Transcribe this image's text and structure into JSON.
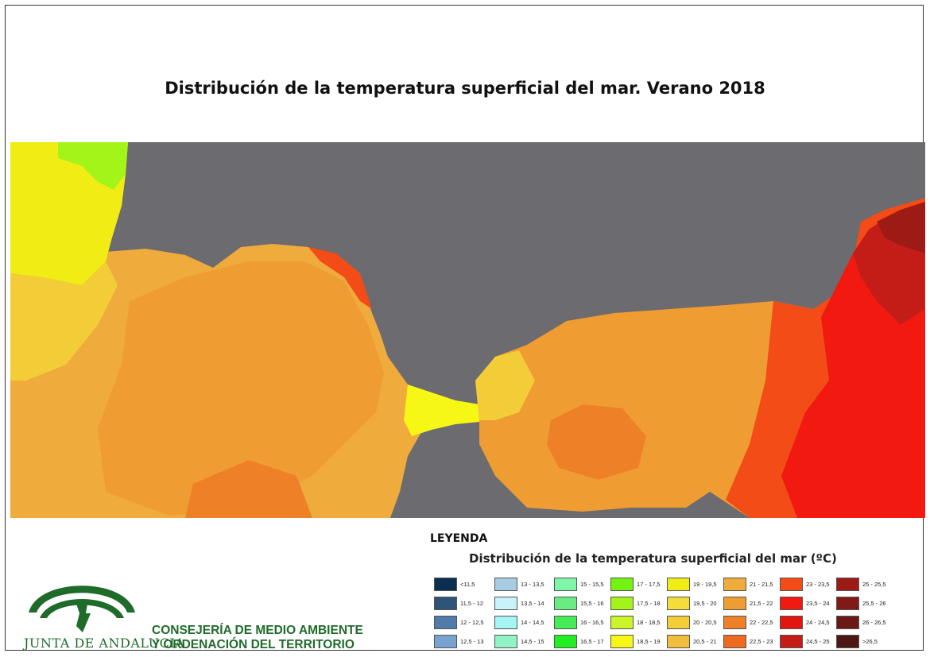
{
  "title": "Distribución de la temperatura superficial del mar. Verano 2018",
  "legend": {
    "heading": "LEYENDA",
    "subtitle": "Distribución de la temperatura superficial del mar (ºC)",
    "classes": [
      {
        "label": "<11,5",
        "color": "#0b2f52"
      },
      {
        "label": "11,5 - 12",
        "color": "#2f5479"
      },
      {
        "label": "12 - 12,5",
        "color": "#4f7cab"
      },
      {
        "label": "12,5 - 13",
        "color": "#79a3cf"
      },
      {
        "label": "13 - 13,5",
        "color": "#a6cbe3"
      },
      {
        "label": "13,5 - 14",
        "color": "#c8f3fb"
      },
      {
        "label": "14 - 14,5",
        "color": "#a4f5f3"
      },
      {
        "label": "14,5 - 15",
        "color": "#8ff3c5"
      },
      {
        "label": "15 - 15,5",
        "color": "#7ff5a7"
      },
      {
        "label": "15,5 - 16",
        "color": "#69ec82"
      },
      {
        "label": "16 - 16,5",
        "color": "#44ec55"
      },
      {
        "label": "16,5 - 17",
        "color": "#21ee23"
      },
      {
        "label": "17 - 17,5",
        "color": "#74f30f"
      },
      {
        "label": "17,5 - 18",
        "color": "#a3f418"
      },
      {
        "label": "18 - 18,5",
        "color": "#ccf42a"
      },
      {
        "label": "18,5 - 19",
        "color": "#f7f716"
      },
      {
        "label": "19 - 19,5",
        "color": "#f2ec15"
      },
      {
        "label": "19,5 - 20",
        "color": "#f4dd3a"
      },
      {
        "label": "20 - 20,5",
        "color": "#f3cd38"
      },
      {
        "label": "20,5 - 21",
        "color": "#f1bd3a"
      },
      {
        "label": "21 - 21,5",
        "color": "#efab3c"
      },
      {
        "label": "21,5 - 22",
        "color": "#ef9c33"
      },
      {
        "label": "22 - 22,5",
        "color": "#ee8128"
      },
      {
        "label": "22,5 - 23",
        "color": "#ed6a20"
      },
      {
        "label": "23 - 23,5",
        "color": "#f34c17"
      },
      {
        "label": "23,5 - 24",
        "color": "#f21a10"
      },
      {
        "label": "24 - 24,5",
        "color": "#e3160f"
      },
      {
        "label": "24,5 - 25",
        "color": "#c41d18"
      },
      {
        "label": "25 - 25,5",
        "color": "#9d1a15"
      },
      {
        "label": "25,5 - 26",
        "color": "#811a17"
      },
      {
        "label": "26 - 26,5",
        "color": "#6a1916"
      },
      {
        "label": ">26,5",
        "color": "#4d1714"
      }
    ]
  },
  "organization": {
    "name": "JUNTA DE ANDALUCIA",
    "line1": "CONSEJERÍA DE MEDIO AMBIENTE",
    "line2": "Y ORDENACIÓN DEL TERRITORIO"
  },
  "map_colors": {
    "land": "#6b6b70",
    "atlantic_north": "#f2ec15",
    "atlantic": "#efab3c",
    "alboran": "#ef9c33",
    "strait": "#f7f716",
    "east": "#f34c17",
    "hot": "#f21a10",
    "hottest": "#9d1a15"
  }
}
